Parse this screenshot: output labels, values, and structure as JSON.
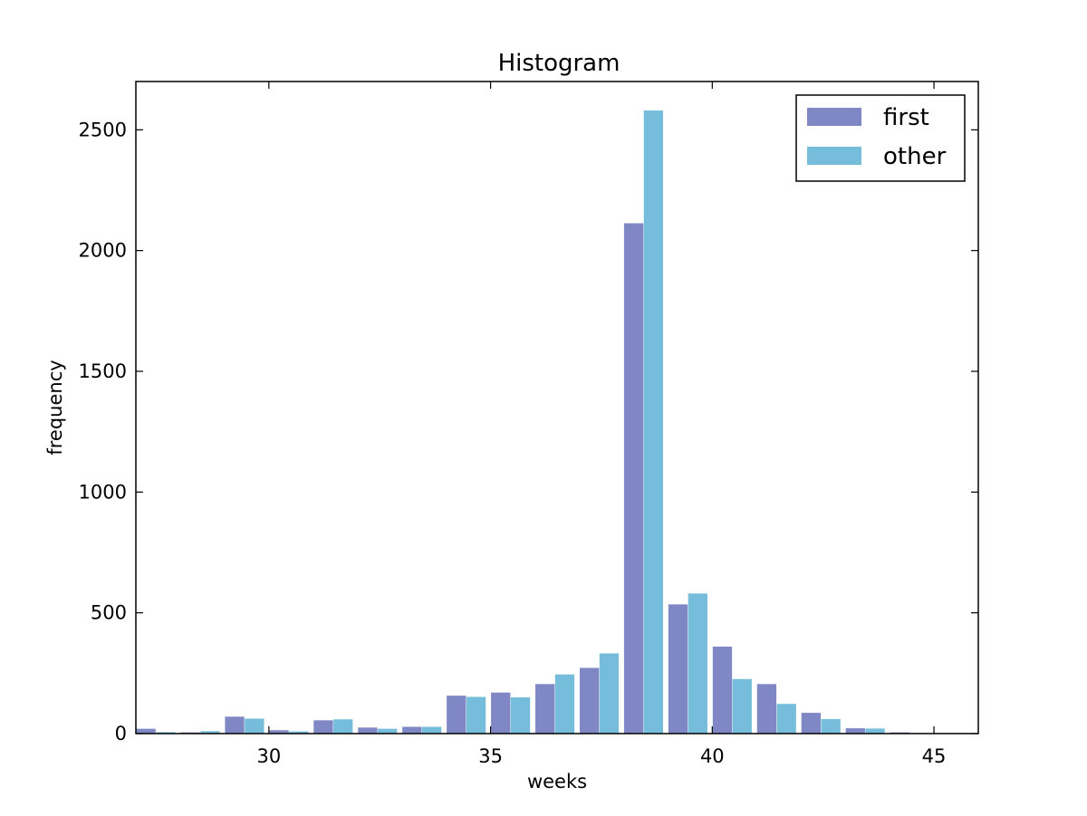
{
  "chart_data": {
    "type": "bar",
    "title": "Histogram",
    "xlabel": "weeks",
    "ylabel": "frequency",
    "xlim": [
      27,
      46
    ],
    "ylim": [
      0,
      2700
    ],
    "xticks": [
      30,
      35,
      40,
      45
    ],
    "yticks": [
      0,
      500,
      1000,
      1500,
      2000,
      2500
    ],
    "grid": false,
    "legend_position": "top-right",
    "x": [
      27,
      28,
      29,
      30,
      31,
      32,
      33,
      34,
      35,
      36,
      37,
      38,
      39,
      40,
      41,
      42,
      43,
      44,
      45
    ],
    "series": [
      {
        "name": "first",
        "color": "#7f88c4",
        "values": [
          20,
          5,
          70,
          14,
          55,
          25,
          28,
          157,
          170,
          205,
          272,
          2113,
          535,
          360,
          205,
          86,
          22,
          5,
          0
        ]
      },
      {
        "name": "other",
        "color": "#76bddb",
        "values": [
          6,
          10,
          62,
          9,
          59,
          20,
          28,
          152,
          150,
          245,
          332,
          2580,
          580,
          226,
          123,
          60,
          21,
          0,
          0
        ]
      }
    ]
  }
}
